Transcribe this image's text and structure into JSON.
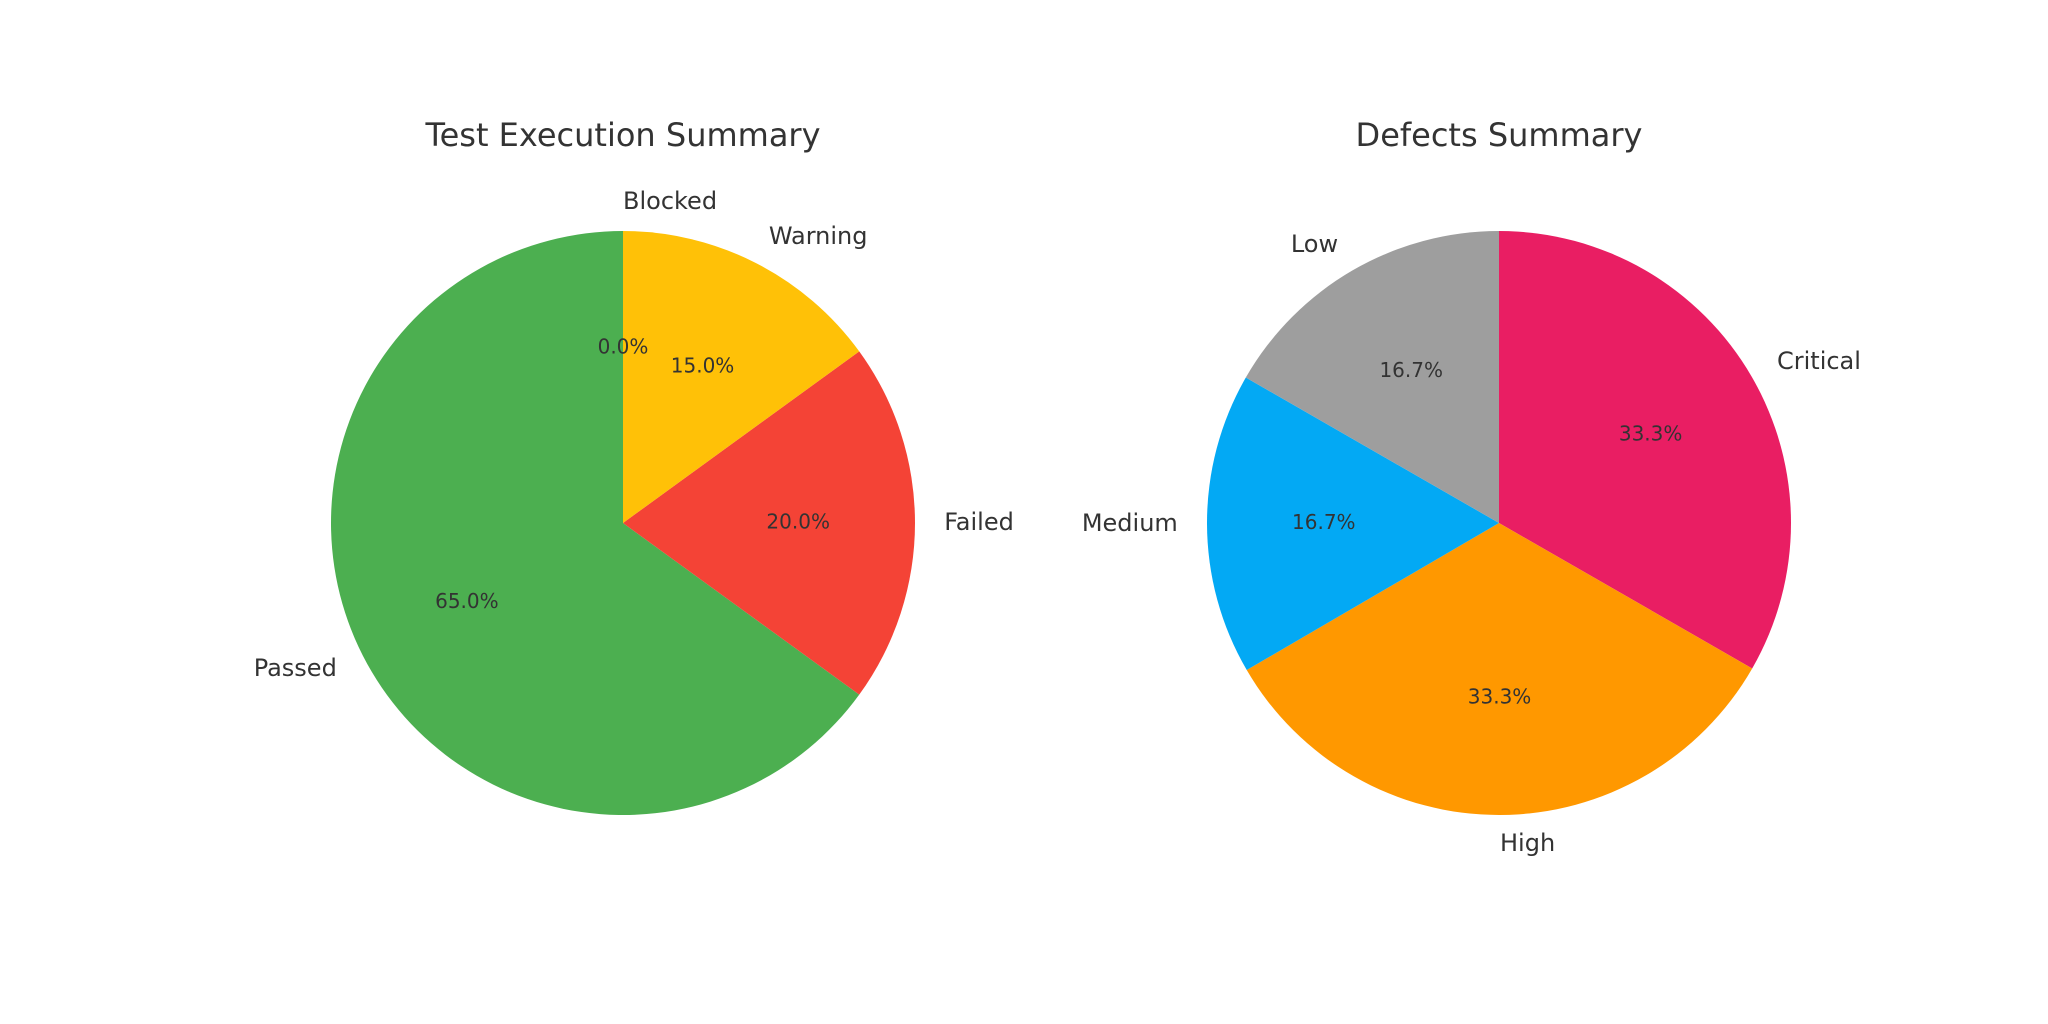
{
  "chart_data": [
    {
      "type": "pie",
      "title": "Test Execution Summary",
      "categories": [
        "Passed",
        "Failed",
        "Warning",
        "Blocked"
      ],
      "values": [
        65.0,
        20.0,
        15.0,
        0.0
      ],
      "percent_labels": [
        "65.0%",
        "20.0%",
        "15.0%",
        "0.0%"
      ],
      "colors": [
        "#4caf50",
        "#f44336",
        "#ffc107",
        "#9e9e9e"
      ],
      "start_angle_deg": 90,
      "direction": "counterclockwise"
    },
    {
      "type": "pie",
      "title": "Defects Summary",
      "categories": [
        "Critical",
        "High",
        "Medium",
        "Low"
      ],
      "values": [
        33.3,
        33.3,
        16.7,
        16.7
      ],
      "percent_labels": [
        "33.3%",
        "33.3%",
        "16.7%",
        "16.7%"
      ],
      "colors": [
        "#e91e63",
        "#ff9800",
        "#03a9f4",
        "#9e9e9e"
      ],
      "start_angle_deg": 90,
      "direction": "clockwise"
    }
  ]
}
